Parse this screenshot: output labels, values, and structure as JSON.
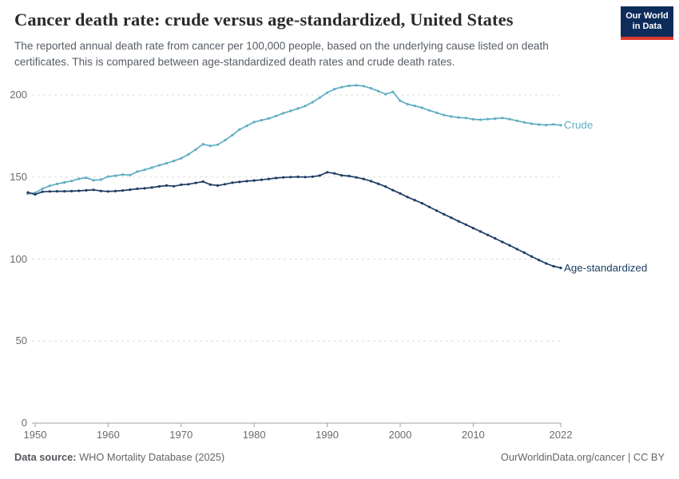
{
  "header": {
    "title": "Cancer death rate: crude versus age-standardized, United States",
    "subtitle": "The reported annual death rate from cancer per 100,000 people, based on the underlying cause listed on death certificates. This is compared between age-standardized death rates and crude death rates."
  },
  "logo": {
    "line1": "Our World",
    "line2": "in Data",
    "bg_color": "#0d2c5a",
    "accent_color": "#dc3a32"
  },
  "chart_data": {
    "type": "line",
    "title": "Cancer death rate: crude versus age-standardized, United States",
    "xlabel": "",
    "ylabel": "",
    "ylim": [
      0,
      210
    ],
    "grid": "horizontal-dashed",
    "legend_position": "end-of-line",
    "yticks": [
      0,
      50,
      100,
      150,
      200
    ],
    "xticks": [
      1950,
      1960,
      1970,
      1980,
      1990,
      2000,
      2010,
      2022
    ],
    "x": [
      1949,
      1950,
      1951,
      1952,
      1953,
      1954,
      1955,
      1956,
      1957,
      1958,
      1959,
      1960,
      1961,
      1962,
      1963,
      1964,
      1965,
      1966,
      1967,
      1968,
      1969,
      1970,
      1971,
      1972,
      1973,
      1974,
      1975,
      1976,
      1977,
      1978,
      1979,
      1980,
      1981,
      1982,
      1983,
      1984,
      1985,
      1986,
      1987,
      1988,
      1989,
      1990,
      1991,
      1992,
      1993,
      1994,
      1995,
      1996,
      1997,
      1998,
      1999,
      2000,
      2001,
      2002,
      2003,
      2004,
      2005,
      2006,
      2007,
      2008,
      2009,
      2010,
      2011,
      2012,
      2013,
      2014,
      2015,
      2016,
      2017,
      2018,
      2019,
      2020,
      2021,
      2022
    ],
    "series": [
      {
        "name": "Crude",
        "color": "#5faec2",
        "values": [
          139.8,
          140.3,
          142.9,
          144.6,
          145.8,
          146.7,
          147.6,
          148.9,
          149.6,
          148.0,
          148.4,
          150.3,
          150.8,
          151.5,
          151.2,
          153.3,
          154.4,
          155.7,
          157.2,
          158.4,
          159.8,
          161.4,
          163.8,
          166.8,
          170.0,
          169.0,
          169.7,
          172.4,
          175.5,
          179.0,
          181.2,
          183.5,
          184.6,
          185.7,
          187.2,
          188.9,
          190.3,
          191.8,
          193.3,
          195.6,
          198.4,
          201.4,
          203.6,
          204.8,
          205.6,
          205.9,
          205.4,
          204.1,
          202.4,
          200.5,
          201.9,
          196.5,
          194.4,
          193.4,
          192.2,
          190.6,
          189.2,
          187.8,
          186.9,
          186.3,
          186.0,
          185.2,
          184.9,
          185.3,
          185.6,
          186.0,
          185.3,
          184.3,
          183.3,
          182.5,
          182.0,
          181.7,
          182.1,
          181.6
        ]
      },
      {
        "name": "Age-standardized",
        "color": "#1d3d63",
        "values": [
          140.6,
          139.4,
          141.0,
          141.2,
          141.3,
          141.3,
          141.4,
          141.6,
          141.9,
          142.2,
          141.5,
          141.2,
          141.4,
          141.8,
          142.3,
          142.8,
          143.1,
          143.6,
          144.3,
          144.8,
          144.4,
          145.3,
          145.6,
          146.4,
          147.2,
          145.4,
          144.8,
          145.6,
          146.5,
          147.0,
          147.5,
          147.9,
          148.3,
          148.8,
          149.4,
          149.8,
          150.0,
          150.1,
          150.0,
          150.2,
          150.9,
          152.9,
          152.2,
          151.0,
          150.6,
          149.8,
          148.8,
          147.5,
          145.9,
          144.2,
          142.0,
          140.0,
          137.8,
          135.9,
          134.0,
          131.8,
          129.5,
          127.3,
          125.2,
          123.0,
          121.0,
          118.9,
          116.8,
          114.7,
          112.6,
          110.4,
          108.3,
          106.1,
          103.9,
          101.6,
          99.4,
          97.3,
          95.6,
          94.6
        ]
      }
    ]
  },
  "footer": {
    "source_label": "Data source:",
    "source_value": " WHO Mortality Database (2025)",
    "credit": "OurWorldinData.org/cancer | CC BY"
  }
}
